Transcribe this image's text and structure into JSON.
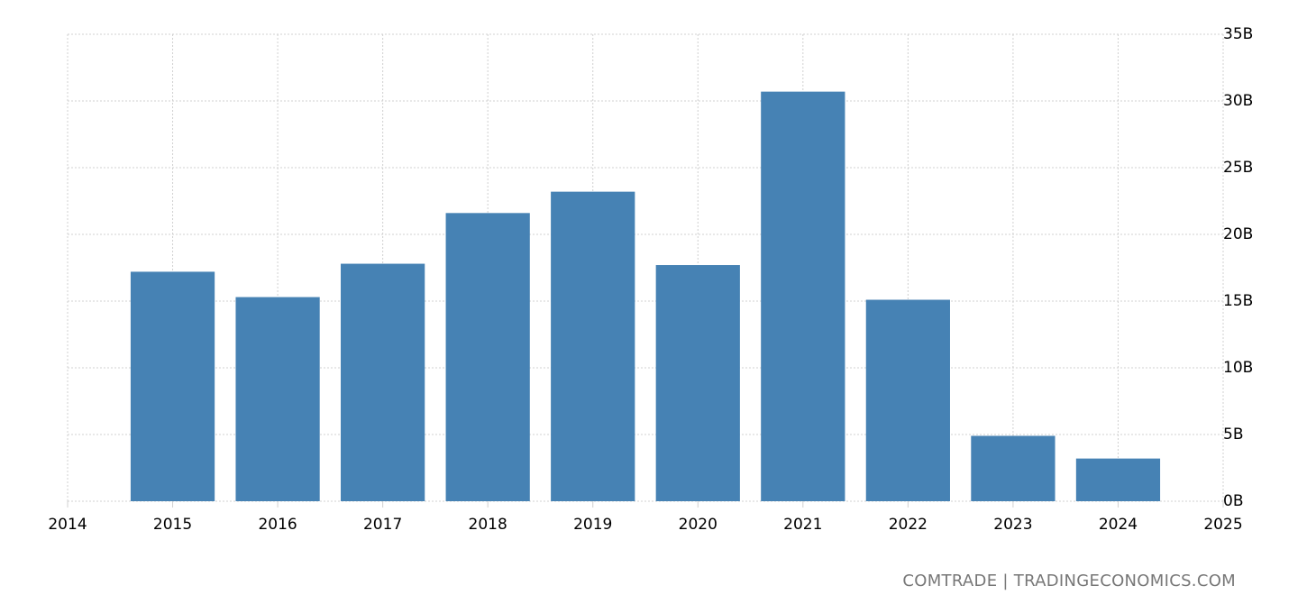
{
  "chart_data": {
    "type": "bar",
    "title": "",
    "xlabel": "",
    "ylabel": "",
    "categories": [
      "2015",
      "2016",
      "2017",
      "2018",
      "2019",
      "2020",
      "2021",
      "2022",
      "2023",
      "2024"
    ],
    "values": [
      17.2,
      15.3,
      17.8,
      21.6,
      23.2,
      17.7,
      30.7,
      15.1,
      4.9,
      3.2
    ],
    "value_unit": "B",
    "ylim": [
      0,
      35
    ],
    "xlim": [
      2014,
      2025
    ],
    "y_ticks": [
      "0B",
      "5B",
      "10B",
      "15B",
      "20B",
      "25B",
      "30B",
      "35B"
    ],
    "y_tick_values": [
      0,
      5,
      10,
      15,
      20,
      25,
      30,
      35
    ],
    "x_ticks": [
      "2014",
      "2015",
      "2016",
      "2017",
      "2018",
      "2019",
      "2020",
      "2021",
      "2022",
      "2023",
      "2024",
      "2025"
    ],
    "y_axis_position": "right",
    "grid": true,
    "legend": null,
    "bar_color": "#4682b4"
  },
  "source_text": "COMTRADE | TRADINGECONOMICS.COM",
  "colors": {
    "bar": "#4682b4",
    "grid": "#d0d0d0",
    "source": "#777777"
  }
}
